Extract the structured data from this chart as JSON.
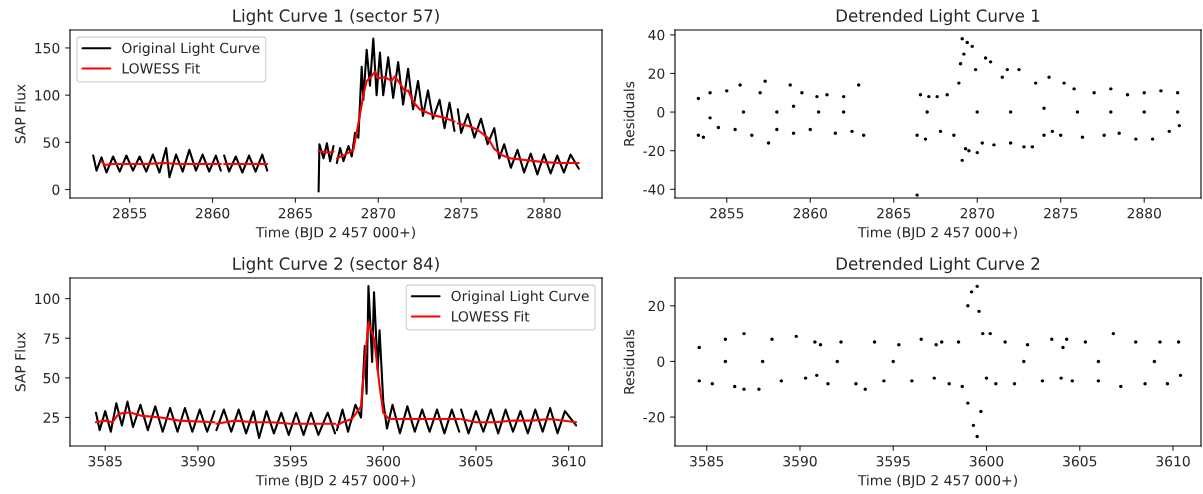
{
  "chart_data": [
    {
      "type": "line",
      "title": "Light Curve 1 (sector 57)",
      "xlabel": "Time (BJD 2 457 000+)",
      "ylabel": "SAP Flux",
      "xlim": [
        2851.4,
        2883.5
      ],
      "xticks": [
        2855,
        2860,
        2865,
        2870,
        2875,
        2880
      ],
      "ylim": [
        -9,
        169
      ],
      "yticks": [
        0,
        50,
        100,
        150
      ],
      "grid": false,
      "legend": "top left",
      "series": [
        {
          "name": "Original Light Curve",
          "color": "#000000",
          "x": [
            2852.8,
            2853.0,
            2853.3,
            2853.6,
            2854.0,
            2854.4,
            2854.8,
            2855.2,
            2855.6,
            2856.0,
            2856.4,
            2856.8,
            2857.2,
            2857.4,
            2857.8,
            2858.2,
            2858.6,
            2859.0,
            2859.4,
            2859.8,
            2860.2,
            2860.5,
            2860.6,
            2860.7,
            2861.0,
            2861.4,
            2861.8,
            2862.2,
            2862.6,
            2863.0,
            2863.3,
            2864.0,
            2866.4,
            2866.45,
            2866.7,
            2866.9,
            2867.1,
            2867.3,
            2867.4,
            2867.5,
            2867.7,
            2867.9,
            2868.2,
            2868.4,
            2868.6,
            2868.8,
            2869.0,
            2869.1,
            2869.3,
            2869.5,
            2869.7,
            2869.9,
            2870.1,
            2870.3,
            2870.6,
            2870.9,
            2871.2,
            2871.5,
            2871.8,
            2872.1,
            2872.4,
            2872.7,
            2873.0,
            2873.3,
            2873.7,
            2874.0,
            2874.3,
            2874.6,
            2874.7,
            2874.8,
            2875.0,
            2875.4,
            2875.8,
            2876.2,
            2876.6,
            2877.0,
            2877.3,
            2877.6,
            2878.0,
            2878.4,
            2878.8,
            2879.2,
            2879.6,
            2880.0,
            2880.4,
            2880.8,
            2881.2,
            2881.6,
            2882.1
          ],
          "values": [
            36,
            20,
            34,
            18,
            35,
            19,
            36,
            20,
            35,
            19,
            37,
            18,
            44,
            13,
            37,
            19,
            42,
            20,
            37,
            19,
            36,
            20,
            null,
            36,
            19,
            35,
            18,
            36,
            19,
            37,
            20,
            null,
            -2,
            48,
            33,
            49,
            30,
            46,
            null,
            28,
            44,
            30,
            46,
            35,
            60,
            55,
            130,
            95,
            148,
            110,
            160,
            100,
            145,
            100,
            140,
            97,
            135,
            90,
            128,
            85,
            115,
            78,
            105,
            75,
            95,
            65,
            92,
            62,
            null,
            85,
            60,
            80,
            55,
            75,
            48,
            65,
            33,
            48,
            23,
            42,
            18,
            38,
            16,
            37,
            17,
            36,
            18,
            37,
            22
          ]
        },
        {
          "name": "LOWESS Fit",
          "color": "#ff0000",
          "x": [
            2853.3,
            2853.5,
            2854.0,
            2856.0,
            2857.0,
            2858.0,
            2860.5,
            2860.6,
            2860.7,
            2863.3,
            2864.0,
            2866.4,
            2867.0,
            2867.3,
            2867.4,
            2867.5,
            2868.0,
            2868.5,
            2868.8,
            2869.1,
            2869.3,
            2869.6,
            2869.8,
            2870.0,
            2870.4,
            2870.8,
            2871.0,
            2871.4,
            2871.6,
            2871.8,
            2872.1,
            2872.5,
            2873.0,
            2873.5,
            2874.0,
            2874.6,
            2874.7,
            2874.8,
            2875.5,
            2876.0,
            2876.6,
            2877.0,
            2877.5,
            2878.0,
            2879.0,
            2880.0,
            2881.0,
            2882.1
          ],
          "values": [
            30,
            26,
            27,
            27,
            28,
            27,
            27,
            null,
            27,
            27,
            null,
            41,
            39,
            40,
            null,
            33,
            37,
            42,
            70,
            100,
            115,
            120,
            125,
            118,
            119,
            115,
            120,
            110,
            104,
            105,
            93,
            85,
            81,
            78,
            76,
            72,
            null,
            70,
            67,
            63,
            55,
            43,
            36,
            33,
            31,
            29,
            28,
            28
          ]
        }
      ]
    },
    {
      "type": "scatter",
      "title": "Detrended Light Curve 1",
      "xlabel": "Time (BJD 2 457 000+)",
      "ylabel": "Residuals",
      "xlim": [
        2851.9,
        2883.4
      ],
      "xticks": [
        2855,
        2860,
        2865,
        2870,
        2875,
        2880
      ],
      "ylim": [
        -44.5,
        42.5
      ],
      "yticks": [
        -40,
        -20,
        0,
        20,
        40
      ],
      "grid": false,
      "marker": "circle",
      "series": [
        {
          "color": "#000000",
          "x": [
            2853.3,
            2853.3,
            2853.6,
            2854.0,
            2854.5,
            2855.0,
            2855.5,
            2855.8,
            2856.5,
            2857.0,
            2857.3,
            2857.5,
            2858.0,
            2858.8,
            2859.0,
            2859.5,
            2860.0,
            2860.4,
            2860.5,
            2861.0,
            2861.5,
            2862.0,
            2862.5,
            2862.9,
            2863.2,
            2856.0,
            2858.0,
            2862.0,
            2854.0,
            2859.0,
            2866.4,
            2866.4,
            2866.6,
            2866.9,
            2867.1,
            2867.0,
            2867.6,
            2867.8,
            2868.2,
            2868.6,
            2868.9,
            2869.0,
            2869.1,
            2869.2,
            2869.1,
            2869.3,
            2869.5,
            2869.4,
            2869.7,
            2869.9,
            2870.0,
            2870.3,
            2870.5,
            2870.8,
            2871.0,
            2871.5,
            2871.8,
            2872.0,
            2872.5,
            2872.8,
            2873.3,
            2873.5,
            2874.0,
            2874.3,
            2874.5,
            2870.0,
            2872.0,
            2874.0,
            2875.0,
            2875.2,
            2875.8,
            2876.3,
            2877.0,
            2877.6,
            2878.0,
            2878.5,
            2879.0,
            2879.5,
            2880.0,
            2880.5,
            2881.0,
            2881.5,
            2882.0,
            2882.1,
            2876.0,
            2878.0,
            2880.0,
            2882.0
          ],
          "values": [
            7,
            -12,
            -13,
            10,
            -8,
            11,
            -9,
            14,
            -12,
            10,
            16,
            -16,
            -9,
            14,
            -11,
            10,
            -9,
            8,
            0,
            9,
            -11,
            8,
            -10,
            14,
            -12,
            0,
            0,
            0,
            -3,
            3,
            -43,
            -12,
            9,
            -14,
            8,
            0,
            8,
            -10,
            9,
            -12,
            15,
            25,
            38,
            30,
            -25,
            -19,
            -20,
            36,
            34,
            22,
            -21,
            -16,
            28,
            26,
            -17,
            18,
            22,
            -16,
            22,
            -18,
            -18,
            15,
            -12,
            18,
            -10,
            0,
            0,
            2,
            -12,
            15,
            12,
            -13,
            10,
            -12,
            12,
            -11,
            9,
            -14,
            10,
            -14,
            11,
            -10,
            10,
            -7,
            0,
            0,
            0,
            0
          ]
        }
      ]
    },
    {
      "type": "line",
      "title": "Light Curve 2 (sector 84)",
      "xlabel": "Time (BJD 2 457 000+)",
      "ylabel": "SAP Flux",
      "xlim": [
        3583.1,
        3611.8
      ],
      "xticks": [
        3585,
        3590,
        3595,
        3600,
        3605,
        3610
      ],
      "ylim": [
        7,
        113
      ],
      "yticks": [
        25,
        50,
        75,
        100
      ],
      "grid": false,
      "legend": "top right",
      "series": [
        {
          "name": "Original Light Curve",
          "color": "#000000",
          "x": [
            3584.5,
            3584.7,
            3585.0,
            3585.3,
            3585.6,
            3585.9,
            3586.2,
            3586.5,
            3586.9,
            3587.3,
            3587.7,
            3588.1,
            3588.5,
            3588.9,
            3589.3,
            3589.7,
            3590.1,
            3590.5,
            3590.9,
            3590.95,
            3591.0,
            3591.4,
            3591.8,
            3592.2,
            3592.6,
            3593.0,
            3593.3,
            3593.7,
            3594.1,
            3594.5,
            3594.9,
            3595.3,
            3595.7,
            3596.1,
            3596.5,
            3597.0,
            3597.4,
            3597.45,
            3597.5,
            3597.8,
            3598.1,
            3598.5,
            3598.8,
            3599.0,
            3599.1,
            3599.2,
            3599.4,
            3599.5,
            3599.7,
            3599.8,
            3600.0,
            3600.2,
            3600.5,
            3600.9,
            3601.3,
            3601.7,
            3602.1,
            3602.5,
            3602.9,
            3603.3,
            3603.7,
            3604.1,
            3604.15,
            3604.2,
            3604.6,
            3605.0,
            3605.4,
            3605.8,
            3606.2,
            3606.6,
            3607.0,
            3607.4,
            3607.8,
            3608.2,
            3608.6,
            3609.0,
            3609.4,
            3609.8,
            3610.4
          ],
          "values": [
            28,
            17,
            29,
            16,
            34,
            20,
            35,
            19,
            33,
            17,
            32,
            16,
            31,
            16,
            31,
            16,
            30,
            16,
            29,
            null,
            17,
            30,
            16,
            30,
            15,
            29,
            12,
            29,
            15,
            28,
            14,
            28,
            14,
            28,
            14,
            28,
            15,
            null,
            17,
            30,
            16,
            33,
            25,
            70,
            40,
            108,
            60,
            104,
            55,
            80,
            35,
            18,
            33,
            15,
            32,
            16,
            30,
            16,
            30,
            15,
            30,
            16,
            null,
            30,
            15,
            29,
            16,
            30,
            15,
            30,
            16,
            29,
            15,
            30,
            16,
            31,
            15,
            29,
            20
          ]
        },
        {
          "name": "LOWESS Fit",
          "color": "#ff0000",
          "x": [
            3584.5,
            3585.0,
            3585.4,
            3585.7,
            3586.0,
            3586.4,
            3587.0,
            3588.0,
            3589.0,
            3590.9,
            3590.95,
            3591.0,
            3592.0,
            3593.0,
            3594.0,
            3595.0,
            3596.0,
            3597.4,
            3597.45,
            3597.5,
            3597.8,
            3598.3,
            3598.8,
            3599.0,
            3599.2,
            3599.5,
            3599.8,
            3600.0,
            3600.3,
            3601.0,
            3602.0,
            3604.1,
            3604.15,
            3604.2,
            3605.0,
            3606.0,
            3607.0,
            3608.0,
            3609.0,
            3610.4
          ],
          "values": [
            22,
            23,
            22,
            27,
            28,
            28,
            26,
            25,
            23,
            22,
            null,
            21,
            23,
            22,
            22,
            21,
            21,
            21,
            null,
            20,
            22,
            24,
            32,
            60,
            85,
            75,
            45,
            28,
            24,
            24,
            24,
            24,
            null,
            24,
            22,
            22,
            23,
            23,
            24,
            22
          ]
        }
      ]
    },
    {
      "type": "scatter",
      "title": "Detrended Light Curve 2",
      "xlabel": "Time (BJD 2 457 000+)",
      "ylabel": "Residuals",
      "xlim": [
        3583.3,
        3611.5
      ],
      "xticks": [
        3585,
        3590,
        3595,
        3600,
        3605,
        3610
      ],
      "ylim": [
        -30.4,
        30
      ],
      "yticks": [
        -20,
        0,
        20
      ],
      "grid": false,
      "marker": "circle",
      "series": [
        {
          "color": "#000000",
          "x": [
            3584.6,
            3584.6,
            3585.3,
            3586.0,
            3586.5,
            3587.0,
            3587.0,
            3587.8,
            3588.5,
            3589.0,
            3589.8,
            3590.3,
            3590.8,
            3590.9,
            3591.1,
            3591.5,
            3592.2,
            3593.0,
            3593.5,
            3594.0,
            3594.5,
            3595.3,
            3596.0,
            3596.5,
            3597.2,
            3597.3,
            3597.6,
            3598.0,
            3598.5,
            3598.7,
            3599.0,
            3599.0,
            3599.2,
            3599.3,
            3599.5,
            3599.5,
            3599.6,
            3599.7,
            3599.8,
            3600.0,
            3600.2,
            3600.5,
            3601.0,
            3601.5,
            3602.2,
            3603.0,
            3603.5,
            3604.0,
            3604.1,
            3604.3,
            3604.6,
            3605.3,
            3606.0,
            3606.8,
            3607.2,
            3608.0,
            3608.5,
            3609.3,
            3609.7,
            3610.3,
            3610.4,
            3586.0,
            3588.0,
            3592.0,
            3595.0,
            3602.0,
            3606.0,
            3609.0
          ],
          "values": [
            5,
            -7,
            -8,
            8,
            -9,
            10,
            -10,
            -10,
            8,
            -7,
            9,
            -6,
            7,
            -5,
            6,
            -8,
            7,
            -8,
            -10,
            7,
            -7,
            6,
            -7,
            8,
            -6,
            6,
            7,
            -8,
            7,
            -9,
            20,
            -15,
            25,
            -23,
            27,
            -27,
            18,
            -18,
            10,
            -6,
            10,
            -8,
            7,
            -8,
            6,
            -7,
            8,
            -6,
            5,
            8,
            -7,
            7,
            -7,
            10,
            -9,
            7,
            -8,
            7,
            -8,
            7,
            -5,
            0,
            0,
            0,
            0,
            0,
            0,
            0
          ]
        }
      ]
    }
  ]
}
